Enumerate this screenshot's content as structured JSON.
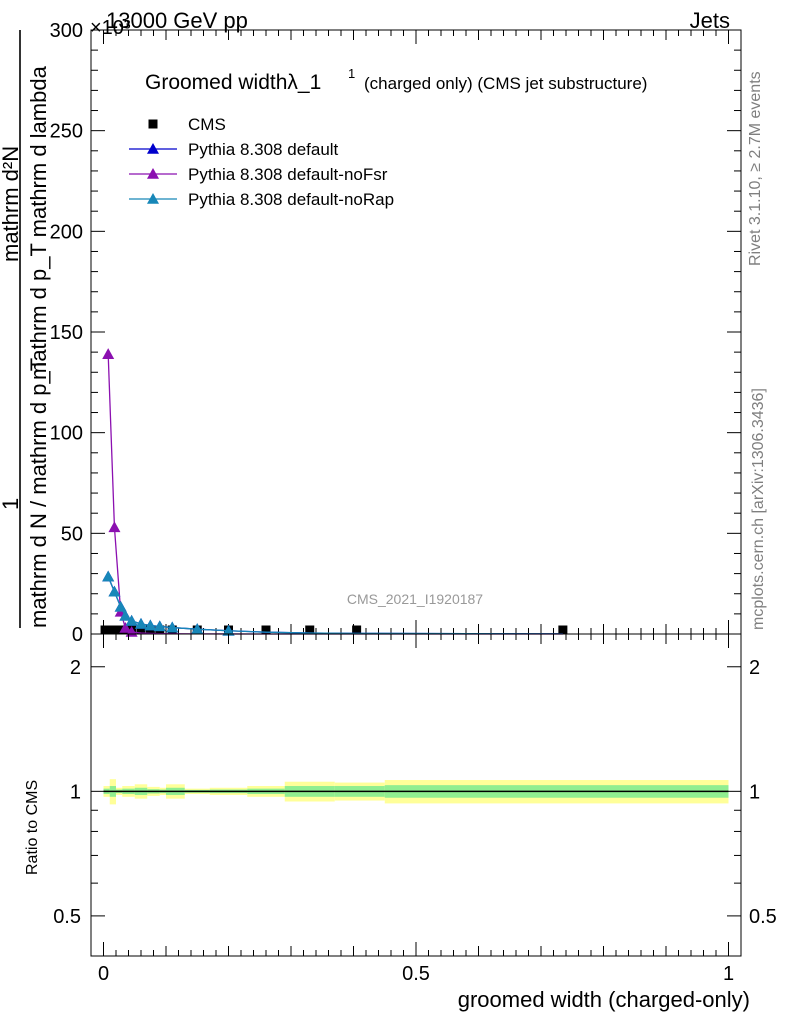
{
  "header": {
    "energy": "13000 GeV pp",
    "process": "Jets",
    "exponent": "×10³"
  },
  "side": {
    "rivet": "Rivet 3.1.10, ≥ 2.7M events",
    "mcplots": "mcplots.cern.ch [arXiv:1306.3436]"
  },
  "chart_data": [
    {
      "type": "line",
      "title_main": "Groomed widthλ_1",
      "title_sup": "1",
      "title_rest": "(charged only) (CMS jet substructure)",
      "analysis": "CMS_2021_I1920187",
      "ylabel_num": "1",
      "ylabel_den": "mathrm d N / mathrm d p_T",
      "ylabel_den_sub": "T",
      "ylabel_right_num": "mathrm d²N",
      "ylabel_right_den": "mathrm d p_T mathrm d lambda",
      "xlim": [
        -0.02,
        1.02
      ],
      "ylim": [
        0,
        300
      ],
      "y_multiplier": 1000,
      "yticks": [
        0,
        50,
        100,
        150,
        200,
        250,
        300
      ],
      "ytick_labels": [
        "0",
        "50",
        "100",
        "150",
        "200",
        "250",
        "300"
      ],
      "legend": [
        {
          "name": "CMS",
          "color": "#000000",
          "marker": "square"
        },
        {
          "name": "Pythia 8.308 default",
          "color": "#0000cc",
          "marker": "triangle"
        },
        {
          "name": "Pythia 8.308 default-noFsr",
          "color": "#8b10b0",
          "marker": "triangle"
        },
        {
          "name": "Pythia 8.308 default-noRap",
          "color": "#1787b8",
          "marker": "triangle"
        }
      ],
      "x": [
        0.0025,
        0.0075,
        0.0125,
        0.0175,
        0.0225,
        0.0275,
        0.035,
        0.045,
        0.06,
        0.075,
        0.09,
        0.11,
        0.15,
        0.2,
        0.26,
        0.33,
        0.405,
        0.735
      ],
      "series": [
        {
          "name": "CMS",
          "values": [
            0.8,
            0.8,
            0.8,
            0.8,
            0.8,
            0.8,
            0.8,
            0.8,
            0.8,
            0.8,
            0.8,
            0.8,
            0.8,
            0.8,
            0.6,
            0.5,
            0.4,
            0.2
          ]
        },
        {
          "name": "Pythia 8.308 default",
          "values": [
            null,
            28.5,
            null,
            21,
            null,
            13.5,
            9,
            6.5,
            5,
            4.2,
            3.8,
            3.2,
            2.4,
            1.6,
            0.9,
            0.5,
            0.3,
            0.05
          ]
        },
        {
          "name": "Pythia 8.308 default-noFsr",
          "values": [
            null,
            139,
            null,
            53,
            null,
            11,
            3,
            1,
            0.5,
            0.3,
            0.2,
            0.1,
            0.05,
            0.02,
            0.01,
            0,
            0,
            0
          ]
        },
        {
          "name": "Pythia 8.308 default-noRap",
          "values": [
            null,
            28.5,
            null,
            21,
            null,
            13.5,
            9,
            6.5,
            5,
            4.2,
            3.8,
            3.2,
            2.4,
            1.6,
            0.9,
            0.5,
            0.3,
            0.05
          ]
        }
      ]
    },
    {
      "type": "area",
      "ylabel": "Ratio to CMS",
      "xlabel": "groomed width (charged-only)",
      "xlim": [
        -0.02,
        1.02
      ],
      "ylim": [
        0.4,
        2.4
      ],
      "yscale": "log",
      "xticks": [
        0,
        0.5,
        1
      ],
      "xtick_labels": [
        "0",
        "0.5",
        "1"
      ],
      "yticks": [
        0.5,
        1,
        2
      ],
      "ytick_labels": [
        "0.5",
        "1",
        "2"
      ],
      "bands": [
        {
          "x0": 0.0,
          "x1": 0.01,
          "yellow": 0.03,
          "green": 0.015
        },
        {
          "x0": 0.01,
          "x1": 0.02,
          "yellow": 0.07,
          "green": 0.03
        },
        {
          "x0": 0.02,
          "x1": 0.03,
          "yellow": 0.02,
          "green": 0.01
        },
        {
          "x0": 0.03,
          "x1": 0.04,
          "yellow": 0.03,
          "green": 0.015
        },
        {
          "x0": 0.04,
          "x1": 0.05,
          "yellow": 0.03,
          "green": 0.015
        },
        {
          "x0": 0.05,
          "x1": 0.07,
          "yellow": 0.04,
          "green": 0.02
        },
        {
          "x0": 0.07,
          "x1": 0.09,
          "yellow": 0.025,
          "green": 0.012
        },
        {
          "x0": 0.09,
          "x1": 0.1,
          "yellow": 0.02,
          "green": 0.01
        },
        {
          "x0": 0.1,
          "x1": 0.13,
          "yellow": 0.04,
          "green": 0.02
        },
        {
          "x0": 0.13,
          "x1": 0.17,
          "yellow": 0.015,
          "green": 0.008
        },
        {
          "x0": 0.17,
          "x1": 0.23,
          "yellow": 0.02,
          "green": 0.01
        },
        {
          "x0": 0.23,
          "x1": 0.29,
          "yellow": 0.03,
          "green": 0.015
        },
        {
          "x0": 0.29,
          "x1": 0.37,
          "yellow": 0.055,
          "green": 0.03
        },
        {
          "x0": 0.37,
          "x1": 0.45,
          "yellow": 0.05,
          "green": 0.03
        },
        {
          "x0": 0.45,
          "x1": 1.0,
          "yellow": 0.065,
          "green": 0.035
        }
      ]
    }
  ]
}
